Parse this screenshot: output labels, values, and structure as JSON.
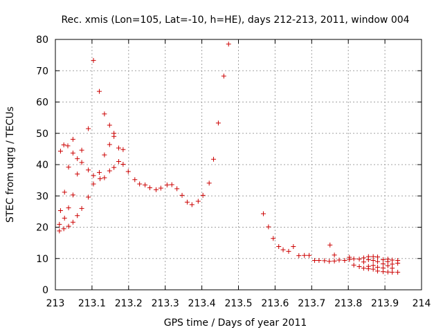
{
  "chart_data": {
    "type": "scatter",
    "title": "Rec. xmis (Lon=105, Lat=-10, h=HE), days 212-213, 2011, window 004",
    "xlabel": "GPS time / Days of year 2011",
    "ylabel": "STEC from uqrg / TECUs",
    "xlim": [
      213,
      214
    ],
    "ylim": [
      0,
      80
    ],
    "xticks": [
      213,
      213.1,
      213.2,
      213.3,
      213.4,
      213.5,
      213.6,
      213.7,
      213.8,
      213.9,
      214
    ],
    "xtick_labels": [
      "213",
      "213.1",
      "213.2",
      "213.3",
      "213.4",
      "213.5",
      "213.6",
      "213.7",
      "213.8",
      "213.9",
      "214"
    ],
    "yticks": [
      0,
      10,
      20,
      30,
      40,
      50,
      60,
      70,
      80
    ],
    "ytick_labels": [
      "0",
      "10",
      "20",
      "30",
      "40",
      "50",
      "60",
      "70",
      "80"
    ],
    "grid": true,
    "marker": "+",
    "color": "#cc0000",
    "series": [
      {
        "name": "STEC",
        "points": [
          [
            213.011,
            18.8
          ],
          [
            213.011,
            20.9
          ],
          [
            213.014,
            25.3
          ],
          [
            213.014,
            44.3
          ],
          [
            213.023,
            46.3
          ],
          [
            213.025,
            31.2
          ],
          [
            213.025,
            22.9
          ],
          [
            213.023,
            19.5
          ],
          [
            213.034,
            46.0
          ],
          [
            213.036,
            39.2
          ],
          [
            213.036,
            26.2
          ],
          [
            213.036,
            20.3
          ],
          [
            213.048,
            48.1
          ],
          [
            213.048,
            43.7
          ],
          [
            213.048,
            30.3
          ],
          [
            213.048,
            21.6
          ],
          [
            213.06,
            41.9
          ],
          [
            213.06,
            37.0
          ],
          [
            213.06,
            23.7
          ],
          [
            213.072,
            44.6
          ],
          [
            213.072,
            40.7
          ],
          [
            213.072,
            26.0
          ],
          [
            213.09,
            51.5
          ],
          [
            213.09,
            38.3
          ],
          [
            213.09,
            29.6
          ],
          [
            213.104,
            73.3
          ],
          [
            213.104,
            36.5
          ],
          [
            213.104,
            33.8
          ],
          [
            213.12,
            63.4
          ],
          [
            213.12,
            37.5
          ],
          [
            213.122,
            35.5
          ],
          [
            213.134,
            56.2
          ],
          [
            213.134,
            43.1
          ],
          [
            213.134,
            35.8
          ],
          [
            213.148,
            52.6
          ],
          [
            213.148,
            46.4
          ],
          [
            213.148,
            38.0
          ],
          [
            213.16,
            50.0
          ],
          [
            213.16,
            49.0
          ],
          [
            213.16,
            39.1
          ],
          [
            213.173,
            45.3
          ],
          [
            213.173,
            41.0
          ],
          [
            213.185,
            44.8
          ],
          [
            213.185,
            40.1
          ],
          [
            213.199,
            37.8
          ],
          [
            213.217,
            35.2
          ],
          [
            213.23,
            33.8
          ],
          [
            213.245,
            33.5
          ],
          [
            213.258,
            32.6
          ],
          [
            213.275,
            32.0
          ],
          [
            213.288,
            32.5
          ],
          [
            213.305,
            33.5
          ],
          [
            213.318,
            33.6
          ],
          [
            213.332,
            32.3
          ],
          [
            213.346,
            30.2
          ],
          [
            213.36,
            28.0
          ],
          [
            213.373,
            27.2
          ],
          [
            213.39,
            28.3
          ],
          [
            213.403,
            30.2
          ],
          [
            213.42,
            34.1
          ],
          [
            213.432,
            41.7
          ],
          [
            213.445,
            53.3
          ],
          [
            213.46,
            68.3
          ],
          [
            213.473,
            78.5
          ],
          [
            213.568,
            24.3
          ],
          [
            213.582,
            20.1
          ],
          [
            213.595,
            16.4
          ],
          [
            213.61,
            13.8
          ],
          [
            213.622,
            12.8
          ],
          [
            213.637,
            12.3
          ],
          [
            213.65,
            13.8
          ],
          [
            213.665,
            10.9
          ],
          [
            213.68,
            11.0
          ],
          [
            213.693,
            11.0
          ],
          [
            213.708,
            9.4
          ],
          [
            213.72,
            9.4
          ],
          [
            213.735,
            9.3
          ],
          [
            213.748,
            9.1
          ],
          [
            213.75,
            14.3
          ],
          [
            213.762,
            11.1
          ],
          [
            213.762,
            9.2
          ],
          [
            213.775,
            9.5
          ],
          [
            213.79,
            9.4
          ],
          [
            213.803,
            10.4
          ],
          [
            213.803,
            9.7
          ],
          [
            213.815,
            9.9
          ],
          [
            213.815,
            7.9
          ],
          [
            213.83,
            9.8
          ],
          [
            213.83,
            7.4
          ],
          [
            213.842,
            10.2
          ],
          [
            213.842,
            8.9
          ],
          [
            213.842,
            6.9
          ],
          [
            213.855,
            10.6
          ],
          [
            213.855,
            9.6
          ],
          [
            213.855,
            7.5
          ],
          [
            213.855,
            6.7
          ],
          [
            213.868,
            10.6
          ],
          [
            213.868,
            9.4
          ],
          [
            213.868,
            7.8
          ],
          [
            213.868,
            6.6
          ],
          [
            213.88,
            10.5
          ],
          [
            213.88,
            9.0
          ],
          [
            213.88,
            7.2
          ],
          [
            213.88,
            6.0
          ],
          [
            213.895,
            9.6
          ],
          [
            213.895,
            8.3
          ],
          [
            213.895,
            7.0
          ],
          [
            213.895,
            5.8
          ],
          [
            213.908,
            9.8
          ],
          [
            213.908,
            9.0
          ],
          [
            213.908,
            7.7
          ],
          [
            213.908,
            5.7
          ],
          [
            213.92,
            9.5
          ],
          [
            213.92,
            8.2
          ],
          [
            213.92,
            6.9
          ],
          [
            213.92,
            5.6
          ],
          [
            213.935,
            9.4
          ],
          [
            213.935,
            8.5
          ],
          [
            213.935,
            5.6
          ]
        ]
      }
    ]
  }
}
